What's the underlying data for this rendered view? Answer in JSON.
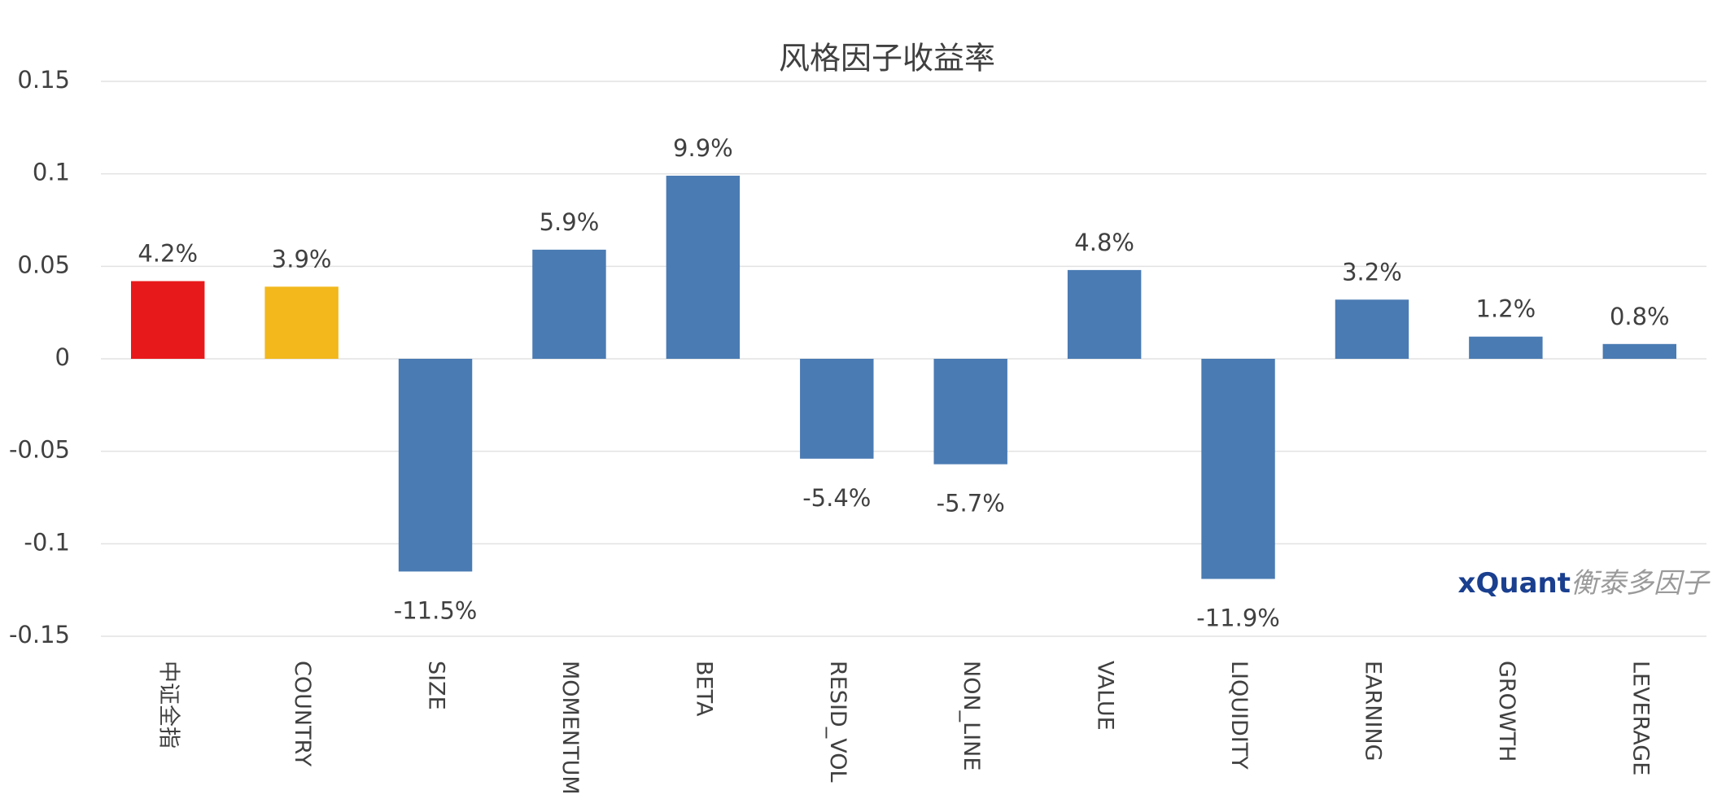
{
  "chart_data": {
    "type": "bar",
    "title": "风格因子收益率",
    "categories": [
      "中证全指",
      "COUNTRY",
      "SIZE",
      "MOMENTUM",
      "BETA",
      "RESID_VOL",
      "NON_LINE",
      "VALUE",
      "LIQUIDITY",
      "EARNING",
      "GROWTH",
      "LEVERAGE"
    ],
    "values": [
      0.042,
      0.039,
      -0.115,
      0.059,
      0.099,
      -0.054,
      -0.057,
      0.048,
      -0.119,
      0.032,
      0.012,
      0.008
    ],
    "value_labels": [
      "4.2%",
      "3.9%",
      "-11.5%",
      "5.9%",
      "9.9%",
      "-5.4%",
      "-5.7%",
      "4.8%",
      "-11.9%",
      "3.2%",
      "1.2%",
      "0.8%"
    ],
    "colors": [
      "#e8191a",
      "#f2b81c",
      "#4a7bb3",
      "#4a7bb3",
      "#4a7bb3",
      "#4a7bb3",
      "#4a7bb3",
      "#4a7bb3",
      "#4a7bb3",
      "#4a7bb3",
      "#4a7bb3",
      "#4a7bb3"
    ],
    "ylim": [
      -0.15,
      0.15
    ],
    "yticks": [
      0.15,
      0.1,
      0.05,
      0,
      -0.05,
      -0.1,
      -0.15
    ],
    "grid": true,
    "watermark": {
      "brand": "xQuant",
      "name": "衡泰多因子"
    }
  }
}
